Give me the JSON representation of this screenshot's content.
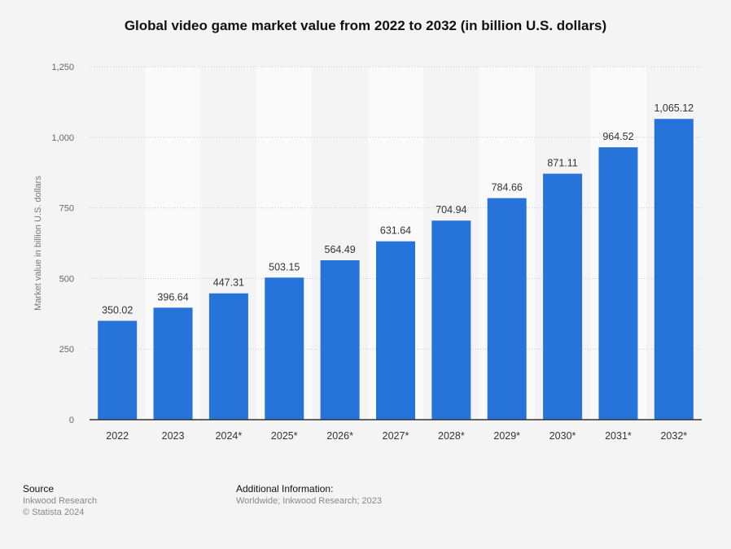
{
  "chart_data": {
    "type": "bar",
    "title": "Global video game market value from 2022 to 2032 (in billion U.S. dollars)",
    "xlabel": "",
    "ylabel": "Market value in billion U.S. dollars",
    "categories": [
      "2022",
      "2023",
      "2024*",
      "2025*",
      "2026*",
      "2027*",
      "2028*",
      "2029*",
      "2030*",
      "2031*",
      "2032*"
    ],
    "values": [
      350.02,
      396.64,
      447.31,
      503.15,
      564.49,
      631.64,
      704.94,
      784.66,
      871.11,
      964.52,
      1065.12
    ],
    "data_labels": [
      "350.02",
      "396.64",
      "447.31",
      "503.15",
      "564.49",
      "631.64",
      "704.94",
      "784.66",
      "871.11",
      "964.52",
      "1,065.12"
    ],
    "ylim": [
      0,
      1250
    ],
    "yticks": [
      0,
      250,
      500,
      750,
      1000,
      1250
    ],
    "ytick_labels": [
      "0",
      "250",
      "500",
      "750",
      "1,000",
      "1,250"
    ],
    "grid": true,
    "bar_color": "#2673da"
  },
  "footer": {
    "source_heading": "Source",
    "source_lines": [
      "Inkwood Research",
      "© Statista 2024"
    ],
    "additional_heading": "Additional Information:",
    "additional_text": "Worldwide; Inkwood Research; 2023"
  }
}
